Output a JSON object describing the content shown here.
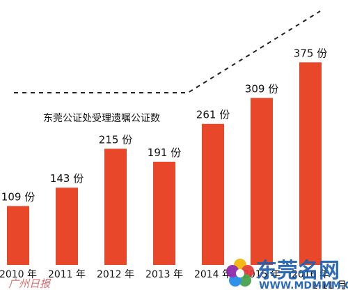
{
  "chart_data": {
    "type": "bar",
    "title": "东莞公证处受理遗嘱公证数",
    "categories": [
      "2010 年",
      "2011 年",
      "2012 年",
      "2013 年",
      "2014 年",
      "2015 年",
      "2016 年"
    ],
    "values": [
      109,
      143,
      215,
      191,
      261,
      309,
      375
    ],
    "data_labels": [
      "109 份",
      "143 份",
      "215 份",
      "191 份",
      "261 份",
      "309 份",
      "375 份"
    ],
    "last_period_note": "1-11 月",
    "bar_color": "#e8472a",
    "ylim": [
      0,
      400
    ],
    "grid": false,
    "legend": "none",
    "trend_line": "dashed"
  },
  "watermark": {
    "site_name": "东莞名网",
    "site_url": "WWW.MDMMM.COM",
    "newspaper_name": "广州日报",
    "colors": {
      "site": "#1d5fb0",
      "newspaper": "#d87070"
    }
  }
}
